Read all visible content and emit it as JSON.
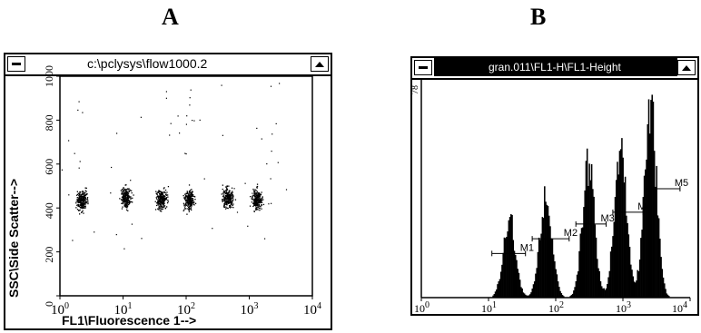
{
  "panels": {
    "a": {
      "letter": "A"
    },
    "b": {
      "letter": "B"
    }
  },
  "window_a": {
    "title": "c:\\pclysys\\flow1000.2",
    "xlabel": "FL1\\Fluorescence 1-->",
    "ylabel": "SSC\\Side Scatter-->",
    "x_ticks": [
      {
        "base": "10",
        "exp": "0"
      },
      {
        "base": "10",
        "exp": "1"
      },
      {
        "base": "10",
        "exp": "2"
      },
      {
        "base": "10",
        "exp": "3"
      },
      {
        "base": "10",
        "exp": "4"
      }
    ],
    "y_ticks": [
      "0",
      "200",
      "400",
      "600",
      "800",
      "1000"
    ]
  },
  "window_b": {
    "title": "gran.011\\FL1-H\\FL1-Height",
    "y_top_label": "78",
    "x_ticks": [
      {
        "base": "10",
        "exp": "0"
      },
      {
        "base": "10",
        "exp": "1"
      },
      {
        "base": "10",
        "exp": "2"
      },
      {
        "base": "10",
        "exp": "3"
      },
      {
        "base": "10",
        "exp": "4"
      }
    ],
    "markers": [
      {
        "label": "M1",
        "x_from": 1.05,
        "x_to": 1.55
      },
      {
        "label": "M2",
        "x_from": 1.65,
        "x_to": 2.2
      },
      {
        "label": "M3",
        "x_from": 2.3,
        "x_to": 2.75
      },
      {
        "label": "M4",
        "x_from": 2.85,
        "x_to": 3.3
      },
      {
        "label": "M5",
        "x_from": 3.35,
        "x_to": 3.85
      }
    ]
  },
  "chart_data": [
    {
      "type": "scatter",
      "title": "c:\\pclysys\\flow1000.2",
      "xlabel": "FL1\\Fluorescence 1-->",
      "ylabel": "SSC\\Side Scatter-->",
      "x_scale": "log",
      "xlim": [
        1,
        10000
      ],
      "ylim": [
        0,
        1000
      ],
      "clusters": [
        {
          "x_center": 2.2,
          "y_center": 440
        },
        {
          "x_center": 11,
          "y_center": 450
        },
        {
          "x_center": 40,
          "y_center": 440
        },
        {
          "x_center": 110,
          "y_center": 440
        },
        {
          "x_center": 450,
          "y_center": 450
        },
        {
          "x_center": 1300,
          "y_center": 440
        }
      ]
    },
    {
      "type": "bar",
      "title": "gran.011\\FL1-H\\FL1-Height",
      "x_scale": "log",
      "xlim": [
        1,
        10000
      ],
      "ylim": [
        0,
        78
      ],
      "peaks": [
        {
          "x": 20,
          "height": 30
        },
        {
          "x": 70,
          "height": 40
        },
        {
          "x": 300,
          "height": 50
        },
        {
          "x": 900,
          "height": 58
        },
        {
          "x": 2500,
          "height": 74
        }
      ]
    }
  ],
  "colors": {
    "ink": "#000000",
    "paper": "#ffffff",
    "titlebar_active": "#000000"
  }
}
